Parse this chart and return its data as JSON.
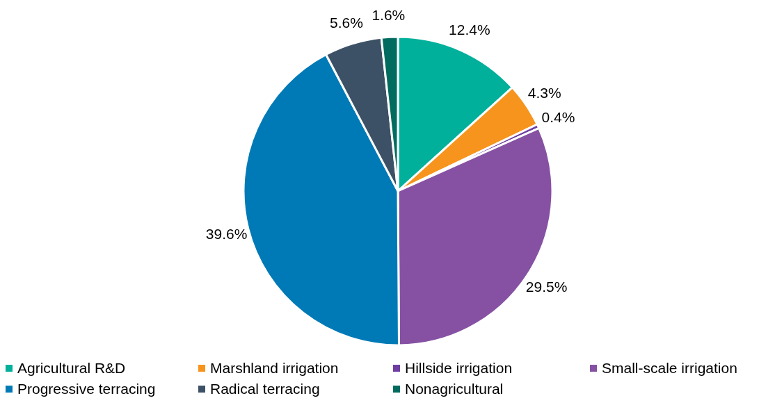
{
  "chart_data": {
    "type": "pie",
    "categories": [
      "Agricultural R&D",
      "Marshland irrigation",
      "Hillside irrigation",
      "Small-scale irrigation",
      "Progressive terracing",
      "Radical terracing",
      "Nonagricultural"
    ],
    "values": [
      12.4,
      4.3,
      0.4,
      29.5,
      39.6,
      5.6,
      1.6
    ],
    "value_labels": [
      "12.4%",
      "4.3%",
      "0.4%",
      "29.5%",
      "39.6%",
      "5.6%",
      "1.6%"
    ],
    "colors": [
      "#00b09b",
      "#f7941d",
      "#6e3ea3",
      "#8651a3",
      "#007ab7",
      "#3d5166",
      "#006b5e"
    ],
    "legend": "bottom"
  }
}
